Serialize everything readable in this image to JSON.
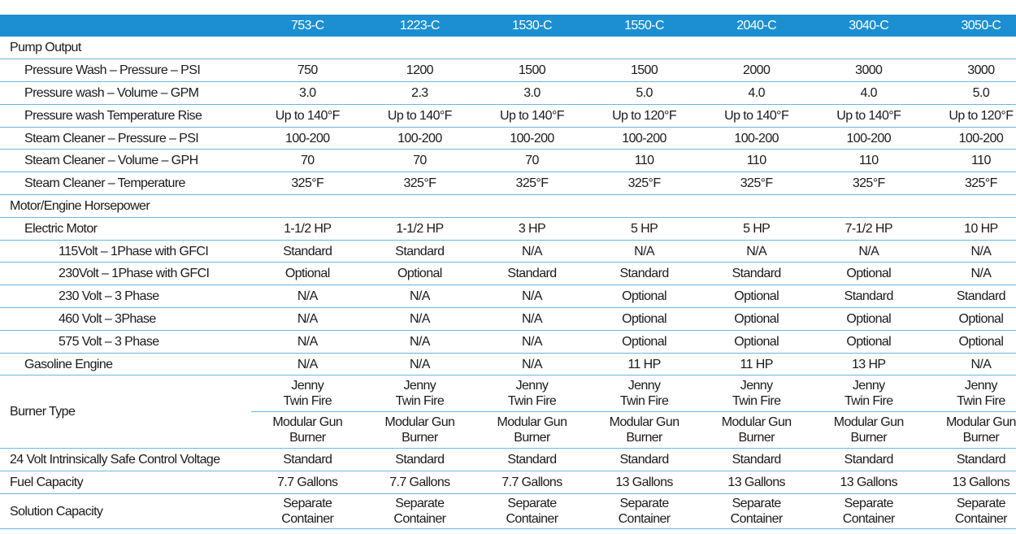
{
  "table": {
    "header": [
      "753-C",
      "1223-C",
      "1530-C",
      "1550-C",
      "2040-C",
      "3040-C",
      "3050-C"
    ],
    "rows": [
      {
        "label": "Pump Output"
      },
      {
        "label": "Pressure Wash – Pressure –  PSI",
        "cells": [
          "750",
          "1200",
          "1500",
          "1500",
          "2000",
          "3000",
          "3000"
        ]
      },
      {
        "label": "Pressure wash – Volume – GPM",
        "cells": [
          "3.0",
          "2.3",
          "3.0",
          "5.0",
          "4.0",
          "4.0",
          "5.0"
        ]
      },
      {
        "label": "Pressure wash Temperature Rise",
        "cells": [
          "Up to 140°F",
          "Up to 140°F",
          "Up to 140°F",
          "Up to 120°F",
          "Up to 140°F",
          "Up to 140°F",
          "Up to 120°F"
        ]
      },
      {
        "label": "Steam Cleaner – Pressure – PSI",
        "cells": [
          "100-200",
          "100-200",
          "100-200",
          "100-200",
          "100-200",
          "100-200",
          "100-200"
        ]
      },
      {
        "label": "Steam Cleaner – Volume – GPH",
        "cells": [
          "70",
          "70",
          "70",
          "110",
          "110",
          "110",
          "110"
        ]
      },
      {
        "label": "Steam Cleaner – Temperature",
        "cells": [
          "325°F",
          "325°F",
          "325°F",
          "325°F",
          "325°F",
          "325°F",
          "325°F"
        ]
      },
      {
        "label": "Motor/Engine Horsepower"
      },
      {
        "label": "Electric Motor",
        "cells": [
          "1-1/2 HP",
          "1-1/2 HP",
          "3 HP",
          "5 HP",
          "5 HP",
          "7-1/2 HP",
          "10 HP"
        ]
      },
      {
        "label": "115Volt – 1Phase with GFCI",
        "cells": [
          "Standard",
          "Standard",
          "N/A",
          "N/A",
          "N/A",
          "N/A",
          "N/A"
        ]
      },
      {
        "label": "230Volt – 1Phase with GFCI",
        "cells": [
          "Optional",
          "Optional",
          "Standard",
          "Standard",
          "Standard",
          "Optional",
          "N/A"
        ]
      },
      {
        "label": "230 Volt  – 3 Phase",
        "cells": [
          "N/A",
          "N/A",
          "N/A",
          "Optional",
          "Optional",
          "Standard",
          "Standard"
        ]
      },
      {
        "label": "460 Volt  – 3Phase",
        "cells": [
          "N/A",
          "N/A",
          "N/A",
          "Optional",
          "Optional",
          "Optional",
          "Optional"
        ]
      },
      {
        "label": "575 Volt –  3 Phase",
        "cells": [
          "N/A",
          "N/A",
          "N/A",
          "Optional",
          "Optional",
          "Optional",
          "Optional"
        ]
      },
      {
        "label": "Gasoline Engine",
        "cells": [
          "N/A",
          "N/A",
          "N/A",
          "11 HP",
          "11 HP",
          "13 HP",
          "N/A"
        ]
      },
      {
        "label": "Burner Type",
        "cells": [
          [
            [
              "Jenny",
              "Twin Fire"
            ],
            [
              "Modular Gun",
              "Burner"
            ]
          ],
          [
            [
              "Jenny",
              "Twin  Fire"
            ],
            [
              "Modular Gun",
              "Burner"
            ]
          ],
          [
            [
              "Jenny",
              "Twin Fire"
            ],
            [
              "Modular Gun",
              "Burner"
            ]
          ],
          [
            [
              "Jenny",
              "Twin Fire"
            ],
            [
              "Modular Gun",
              "Burner"
            ]
          ],
          [
            [
              "Jenny",
              "Twin Fire"
            ],
            [
              "Modular Gun",
              "Burner"
            ]
          ],
          [
            [
              "Jenny",
              "Twin Fire"
            ],
            [
              "Modular Gun",
              "Burner"
            ]
          ],
          [
            [
              "Jenny",
              "Twin Fire"
            ],
            [
              "Modular Gun",
              "Burner"
            ]
          ]
        ]
      },
      {
        "label": "24 Volt Intrinsically Safe Control Voltage",
        "cells": [
          "Standard",
          "Standard",
          "Standard",
          "Standard",
          "Standard",
          "Standard",
          "Standard"
        ]
      },
      {
        "label": "Fuel Capacity",
        "cells": [
          "7.7 Gallons",
          "7.7 Gallons",
          "7.7 Gallons",
          "13 Gallons",
          "13 Gallons",
          "13 Gallons",
          "13 Gallons"
        ]
      },
      {
        "label": "Solution Capacity",
        "cells": [
          [
            "Separate",
            "Container"
          ],
          [
            "Separate",
            "Container"
          ],
          [
            "Separate",
            "Container"
          ],
          [
            "Separate",
            "Container"
          ],
          [
            "Separate",
            "Container"
          ],
          [
            "Separate",
            "Container"
          ],
          [
            "Separate",
            "Container"
          ]
        ]
      }
    ]
  }
}
